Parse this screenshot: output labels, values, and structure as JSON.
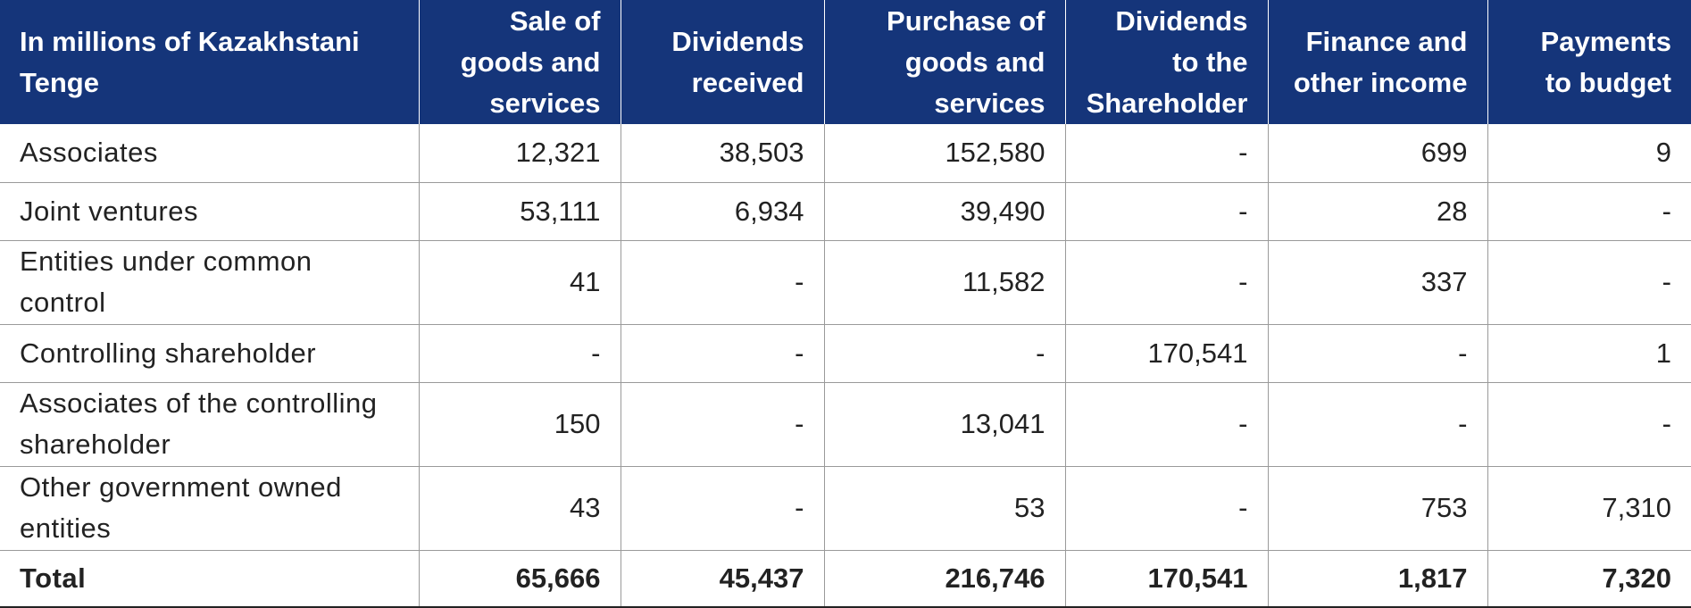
{
  "table": {
    "headers": [
      "In millions of Kazakhstani Tenge",
      "Sale of goods and services",
      "Dividends received",
      "Purchase of goods and services",
      "Dividends to the Shareholder",
      "Finance and other income",
      "Payments to budget"
    ],
    "rows": [
      [
        "Associates",
        "12,321",
        "38,503",
        "152,580",
        "-",
        "699",
        "9"
      ],
      [
        "Joint ventures",
        "53,111",
        "6,934",
        "39,490",
        "-",
        "28",
        "-"
      ],
      [
        "Entities under common control",
        "41",
        "-",
        "11,582",
        "-",
        "337",
        "-"
      ],
      [
        "Controlling shareholder",
        "-",
        "-",
        "-",
        "170,541",
        "-",
        "1"
      ],
      [
        "Associates of the controlling shareholder",
        "150",
        "-",
        "13,041",
        "-",
        "-",
        "-"
      ],
      [
        "Other government owned entities",
        "43",
        "-",
        "53",
        "-",
        "753",
        "7,310"
      ]
    ],
    "total": [
      "Total",
      "65,666",
      "45,437",
      "216,746",
      "170,541",
      "1,817",
      "7,320"
    ]
  },
  "colors": {
    "header_background": "#15357a",
    "header_text": "#ffffff",
    "grid_line": "#9a9a9a",
    "body_text": "#222222"
  }
}
